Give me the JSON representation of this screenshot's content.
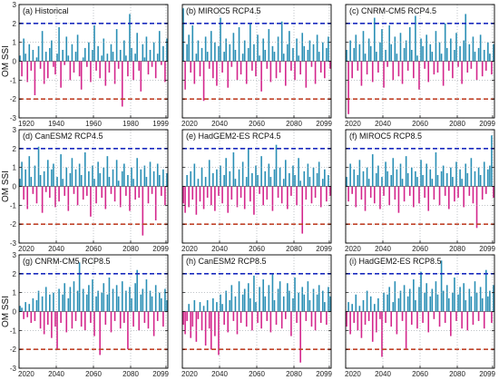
{
  "figure": {
    "ylabel": "OM SSI",
    "colors": {
      "positive_bar": "#2a8fb5",
      "negative_bar": "#d4268c",
      "upper_threshold": "#1a2bbf",
      "lower_threshold": "#c0442a",
      "grid": "#9aa0a6",
      "axis": "#000000"
    }
  },
  "chart_data": [
    {
      "type": "bar",
      "title": "(a) Historical",
      "xlim": [
        1920,
        2000
      ],
      "ylim": [
        -3,
        3
      ],
      "xticks": [
        1920,
        1940,
        1960,
        1980,
        1999
      ],
      "yticks": [
        -3,
        -2,
        -1,
        0,
        1,
        2,
        3
      ],
      "thresholds": [
        2,
        -2
      ],
      "x_start": 1920,
      "values": [
        0.3,
        -0.8,
        1.2,
        0.4,
        -1.1,
        0.9,
        -0.5,
        0.6,
        -1.8,
        0.2,
        0.8,
        -0.4,
        1.6,
        -1.2,
        0.5,
        -0.9,
        0.7,
        1.1,
        -0.3,
        -0.7,
        0.4,
        1.8,
        -1.4,
        0.6,
        -0.2,
        1.3,
        0.3,
        -1.0,
        0.9,
        -0.6,
        0.5,
        1.4,
        -0.8,
        -1.5,
        0.2,
        0.7,
        -0.3,
        1.0,
        -1.1,
        0.6,
        1.9,
        -0.5,
        0.8,
        -0.9,
        0.3,
        1.2,
        -1.3,
        0.4,
        -0.6,
        0.9,
        0.5,
        -1.2,
        1.7,
        -0.4,
        0.6,
        -2.4,
        1.1,
        0.3,
        -0.8,
        2.5,
        0.7,
        -1.0,
        0.4,
        1.5,
        -0.5,
        -1.6,
        0.9,
        0.2,
        1.3,
        -0.7,
        0.6,
        -0.3,
        1.0,
        -0.9,
        0.4,
        1.6,
        -0.2,
        0.8,
        -1.1,
        1.2
      ]
    },
    {
      "type": "bar",
      "title": "(b) MIROC5 RCP4.5",
      "xlim": [
        2020,
        2100
      ],
      "ylim": [
        -3,
        3
      ],
      "xticks": [
        2020,
        2040,
        2060,
        2080,
        2099
      ],
      "yticks": [
        -3,
        -2,
        -1,
        0,
        1,
        2,
        3
      ],
      "thresholds": [
        2,
        -2
      ],
      "x_start": 2020,
      "values": [
        2.8,
        -1.5,
        0.9,
        1.4,
        -0.6,
        1.9,
        -1.2,
        0.4,
        1.1,
        -0.8,
        0.7,
        -2.1,
        1.3,
        0.5,
        -0.4,
        1.6,
        -0.9,
        1.0,
        -1.3,
        0.8,
        2.3,
        -0.6,
        0.5,
        1.2,
        -1.4,
        0.9,
        -0.3,
        1.5,
        0.6,
        -1.0,
        1.8,
        -0.7,
        0.4,
        1.1,
        -1.2,
        0.7,
        2.0,
        -0.5,
        0.9,
        -0.8,
        1.4,
        0.3,
        -1.6,
        1.2,
        0.6,
        -0.4,
        1.7,
        -1.1,
        0.8,
        0.5,
        -0.9,
        1.3,
        -0.6,
        2.1,
        0.4,
        -1.3,
        0.9,
        1.6,
        -0.5,
        0.7,
        -1.0,
        1.2,
        0.3,
        -0.7,
        1.5,
        0.8,
        -1.4,
        0.6,
        1.1,
        -0.3,
        0.9,
        -1.2,
        1.4,
        0.5,
        -0.6,
        1.0,
        -0.9,
        0.7,
        1.3,
        -0.4
      ]
    },
    {
      "type": "bar",
      "title": "(c) CNRM-CM5 RCP4.5",
      "xlim": [
        2020,
        2100
      ],
      "ylim": [
        -3,
        3
      ],
      "xticks": [
        2020,
        2040,
        2060,
        2080,
        2099
      ],
      "yticks": [
        -3,
        -2,
        -1,
        0,
        1,
        2,
        3
      ],
      "thresholds": [
        2,
        -2
      ],
      "x_start": 2020,
      "values": [
        0.6,
        -2.8,
        1.1,
        -0.9,
        0.7,
        1.4,
        -0.5,
        0.9,
        -1.3,
        1.6,
        0.4,
        -0.7,
        1.2,
        0.8,
        -1.1,
        2.3,
        0.5,
        -0.6,
        1.0,
        1.7,
        -1.4,
        0.6,
        -0.3,
        1.9,
        0.9,
        -1.0,
        1.3,
        0.4,
        -0.8,
        1.5,
        -1.2,
        0.7,
        1.1,
        -0.5,
        1.8,
        0.6,
        -0.9,
        2.4,
        0.3,
        -1.5,
        1.2,
        0.8,
        -0.4,
        1.4,
        -1.1,
        0.9,
        0.5,
        -0.7,
        1.6,
        -0.6,
        1.0,
        0.4,
        -1.3,
        2.0,
        0.7,
        -0.5,
        1.2,
        -0.9,
        0.6,
        1.5,
        -0.3,
        0.8,
        -1.2,
        1.1,
        2.5,
        -0.6,
        0.9,
        -0.4,
        1.3,
        0.5,
        -1.0,
        0.7,
        1.4,
        -0.8,
        0.6,
        -0.5,
        1.0,
        0.4,
        -0.7,
        0.9
      ]
    },
    {
      "type": "bar",
      "title": "(d) CanESM2 RCP4.5",
      "xlim": [
        2020,
        2100
      ],
      "ylim": [
        -3,
        3
      ],
      "xticks": [
        2020,
        2040,
        2060,
        2080,
        2099
      ],
      "yticks": [
        -3,
        -2,
        -1,
        0,
        1,
        2,
        3
      ],
      "thresholds": [
        2,
        -2
      ],
      "x_start": 2020,
      "values": [
        0.4,
        1.3,
        -0.7,
        0.9,
        -1.2,
        1.6,
        0.5,
        -0.4,
        1.1,
        -0.9,
        2.1,
        0.6,
        -1.4,
        0.8,
        -0.3,
        1.4,
        -0.6,
        0.9,
        1.2,
        -1.1,
        0.5,
        -0.8,
        1.7,
        0.4,
        -0.5,
        1.0,
        -1.3,
        0.7,
        1.5,
        -0.4,
        0.9,
        -1.0,
        1.2,
        0.6,
        -0.7,
        1.8,
        -0.5,
        0.8,
        -1.6,
        1.1,
        0.4,
        -0.9,
        1.3,
        0.7,
        -0.6,
        1.0,
        -1.2,
        1.6,
        0.5,
        -0.4,
        0.9,
        -0.8,
        1.4,
        0.3,
        -1.1,
        0.8,
        1.2,
        -0.5,
        0.6,
        -1.3,
        1.0,
        0.4,
        -0.7,
        1.5,
        -0.6,
        0.9,
        -2.6,
        1.1,
        0.5,
        -0.9,
        1.3,
        -0.4,
        0.8,
        -1.8,
        1.2,
        0.6,
        -0.5,
        0.9,
        -1.0,
        0.7
      ]
    },
    {
      "type": "bar",
      "title": "(e) HadGEM2-ES RCP4.5",
      "xlim": [
        2020,
        2100
      ],
      "ylim": [
        -3,
        3
      ],
      "xticks": [
        2020,
        2040,
        2060,
        2080,
        2099
      ],
      "yticks": [
        -3,
        -2,
        -1,
        0,
        1,
        2,
        3
      ],
      "thresholds": [
        2,
        -2
      ],
      "x_start": 2020,
      "values": [
        -0.9,
        -1.4,
        0.6,
        -1.1,
        0.8,
        -0.7,
        1.2,
        -1.5,
        0.4,
        -0.8,
        1.0,
        -1.2,
        0.5,
        -0.6,
        1.4,
        -1.0,
        0.7,
        -1.3,
        0.9,
        -0.5,
        1.1,
        -0.9,
        0.6,
        1.5,
        -1.4,
        0.8,
        -0.7,
        1.8,
        0.4,
        -1.1,
        0.9,
        -0.6,
        1.3,
        -1.2,
        0.5,
        2.0,
        -0.8,
        0.7,
        -1.5,
        1.1,
        0.6,
        -0.4,
        1.6,
        -1.0,
        0.8,
        -0.7,
        1.2,
        0.5,
        -1.3,
        0.9,
        2.2,
        -0.6,
        1.0,
        -0.9,
        0.4,
        1.4,
        -1.2,
        0.7,
        -0.5,
        1.1,
        0.6,
        -1.0,
        1.5,
        0.3,
        -2.5,
        0.8,
        -0.7,
        1.2,
        0.5,
        -0.9,
        1.0,
        -0.6,
        0.7,
        1.3,
        -1.1,
        0.4,
        0.9,
        -0.8,
        0.6,
        -0.5
      ]
    },
    {
      "type": "bar",
      "title": "(f) MIROC5 RCP8.5",
      "xlim": [
        2020,
        2100
      ],
      "ylim": [
        -3,
        3
      ],
      "xticks": [
        2020,
        2040,
        2060,
        2080,
        2099
      ],
      "yticks": [
        -3,
        -2,
        -1,
        0,
        1,
        2,
        3
      ],
      "thresholds": [
        2,
        -2
      ],
      "x_start": 2020,
      "values": [
        0.5,
        -0.8,
        1.2,
        -0.4,
        0.9,
        -1.1,
        0.6,
        1.4,
        -0.7,
        0.8,
        -1.3,
        1.0,
        0.4,
        -0.6,
        1.7,
        -0.9,
        0.7,
        1.1,
        -1.2,
        0.5,
        -0.5,
        1.3,
        0.8,
        -1.0,
        0.6,
        1.5,
        -0.7,
        0.9,
        -1.4,
        1.2,
        0.4,
        -0.8,
        1.6,
        0.7,
        -0.5,
        1.0,
        -1.1,
        0.8,
        0.5,
        -0.9,
        1.4,
        0.6,
        -0.6,
        1.2,
        -1.3,
        0.9,
        0.4,
        -0.7,
        1.8,
        0.6,
        -1.0,
        0.8,
        1.1,
        -0.5,
        0.7,
        -1.2,
        1.0,
        0.5,
        -0.8,
        1.3,
        -0.6,
        0.9,
        0.4,
        -1.1,
        1.2,
        0.7,
        -0.5,
        1.5,
        -0.9,
        0.8,
        -2.2,
        1.0,
        0.6,
        -0.7,
        1.3,
        -0.4,
        0.9,
        1.1,
        2.7,
        -0.6
      ]
    },
    {
      "type": "bar",
      "title": "(g) CNRM-CM5 RCP8.5",
      "xlim": [
        2020,
        2100
      ],
      "ylim": [
        -3,
        3
      ],
      "xticks": [
        2020,
        2040,
        2060,
        2080,
        2099
      ],
      "yticks": [
        -3,
        -2,
        -1,
        0,
        1,
        2,
        3
      ],
      "thresholds": [
        2,
        -2
      ],
      "x_start": 2020,
      "values": [
        0.3,
        0.2,
        -0.4,
        0.5,
        -0.3,
        0.4,
        -0.6,
        0.7,
        -0.5,
        0.6,
        1.1,
        -0.9,
        0.8,
        -1.2,
        1.3,
        -0.7,
        0.9,
        -1.4,
        1.0,
        -0.8,
        -2.0,
        1.2,
        -0.6,
        0.9,
        1.5,
        -1.1,
        0.7,
        1.3,
        -0.9,
        1.6,
        -0.5,
        1.1,
        2.6,
        -0.8,
        1.2,
        -1.0,
        0.9,
        1.4,
        -0.6,
        1.7,
        -1.3,
        0.8,
        1.1,
        -2.3,
        1.0,
        1.5,
        -0.7,
        0.9,
        1.8,
        -1.1,
        1.2,
        -0.5,
        1.4,
        0.8,
        -0.9,
        1.6,
        -0.6,
        1.1,
        -2.0,
        1.3,
        0.7,
        -0.8,
        1.5,
        2.2,
        -1.0,
        0.9,
        1.2,
        -0.6,
        1.7,
        -0.9,
        1.1,
        0.8,
        -1.3,
        1.4,
        -0.5,
        1.0,
        0.7,
        -0.8,
        1.2,
        0.6
      ]
    },
    {
      "type": "bar",
      "title": "(h) CanESM2 RCP8.5",
      "xlim": [
        2020,
        2100
      ],
      "ylim": [
        -3,
        3
      ],
      "xticks": [
        2020,
        2040,
        2060,
        2080,
        2099
      ],
      "yticks": [
        -3,
        -2,
        -1,
        0,
        1,
        2,
        3
      ],
      "thresholds": [
        2,
        -2
      ],
      "x_start": 2020,
      "values": [
        -0.7,
        -1.2,
        -0.5,
        0.4,
        -1.4,
        -0.8,
        0.6,
        -1.6,
        -0.4,
        0.5,
        -1.0,
        0.3,
        -1.8,
        0.6,
        -0.9,
        -2.0,
        0.7,
        -1.3,
        0.5,
        -2.3,
        0.9,
        0.4,
        -0.7,
        1.1,
        -1.1,
        0.6,
        1.4,
        -0.5,
        0.8,
        -1.2,
        1.6,
        -0.6,
        0.9,
        1.2,
        -0.8,
        1.5,
        0.7,
        -1.0,
        1.9,
        0.5,
        -0.6,
        1.3,
        -0.9,
        1.7,
        0.8,
        -0.5,
        1.4,
        -1.1,
        2.0,
        0.6,
        -0.7,
        1.2,
        1.6,
        -0.9,
        0.8,
        -0.4,
        1.5,
        1.1,
        -1.3,
        0.7,
        1.8,
        -0.6,
        1.0,
        -2.7,
        1.3,
        0.9,
        -0.5,
        1.6,
        0.6,
        -0.8,
        1.2,
        -1.0,
        0.9,
        1.4,
        -0.6,
        1.1,
        0.5,
        -0.7,
        1.3,
        0.8
      ]
    },
    {
      "type": "bar",
      "title": "(i) HadGEM2-ES RCP8.5",
      "xlim": [
        2020,
        2100
      ],
      "ylim": [
        -3,
        3
      ],
      "xticks": [
        2020,
        2040,
        2060,
        2080,
        2099
      ],
      "yticks": [
        -3,
        -2,
        -1,
        0,
        1,
        2,
        3
      ],
      "thresholds": [
        2,
        -2
      ],
      "x_start": 2020,
      "values": [
        -0.8,
        0.5,
        -1.2,
        0.4,
        -0.6,
        0.9,
        -1.0,
        0.3,
        -1.4,
        0.6,
        -0.7,
        1.1,
        -0.5,
        0.8,
        -1.6,
        0.4,
        -1.1,
        0.7,
        -0.4,
        -2.4,
        1.0,
        -0.6,
        0.9,
        1.3,
        -0.8,
        0.5,
        1.6,
        -1.2,
        0.7,
        1.1,
        -0.5,
        1.4,
        -2.0,
        0.8,
        1.2,
        -0.7,
        1.7,
        0.6,
        -0.9,
        1.3,
        2.1,
        -0.6,
        1.0,
        1.5,
        -1.1,
        0.8,
        1.2,
        -0.4,
        1.6,
        0.9,
        -0.8,
        2.7,
        1.1,
        -0.6,
        1.4,
        0.7,
        -1.3,
        1.0,
        1.8,
        -0.5,
        0.9,
        1.3,
        -0.9,
        1.5,
        0.6,
        -1.0,
        1.2,
        0.8,
        -0.7,
        1.6,
        1.0,
        -0.5,
        1.3,
        0.7,
        -0.9,
        2.2,
        0.8,
        1.1,
        -0.6,
        1.4
      ]
    }
  ]
}
